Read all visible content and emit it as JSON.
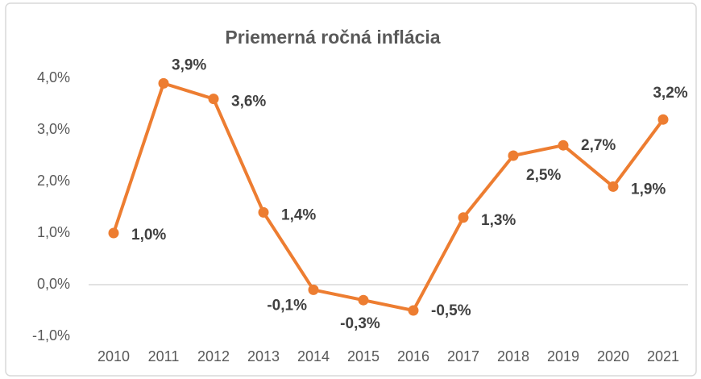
{
  "chart_data": {
    "type": "line",
    "title": "Priemerná ročná inflácia",
    "categories": [
      "2010",
      "2011",
      "2012",
      "2013",
      "2014",
      "2015",
      "2016",
      "2017",
      "2018",
      "2019",
      "2020",
      "2021"
    ],
    "series": [
      {
        "color": "#ed7d31",
        "values": [
          1.0,
          3.9,
          3.6,
          1.4,
          -0.1,
          -0.3,
          -0.5,
          1.3,
          2.5,
          2.7,
          1.9,
          3.2
        ],
        "value_labels": [
          "1,0%",
          "3,9%",
          "3,6%",
          "1,4%",
          "-0,1%",
          "-0,3%",
          "-0,5%",
          "1,3%",
          "2,5%",
          "2,7%",
          "1,9%",
          "3,2%"
        ]
      }
    ],
    "ylim": [
      -1,
      4
    ],
    "yticks": [
      {
        "value": -1,
        "label": "-1,0%"
      },
      {
        "value": 0,
        "label": "0,0%"
      },
      {
        "value": 1,
        "label": "1,0%"
      },
      {
        "value": 2,
        "label": "2,0%"
      },
      {
        "value": 3,
        "label": "3,0%"
      },
      {
        "value": 4,
        "label": "4,0%"
      }
    ],
    "grid": false
  }
}
